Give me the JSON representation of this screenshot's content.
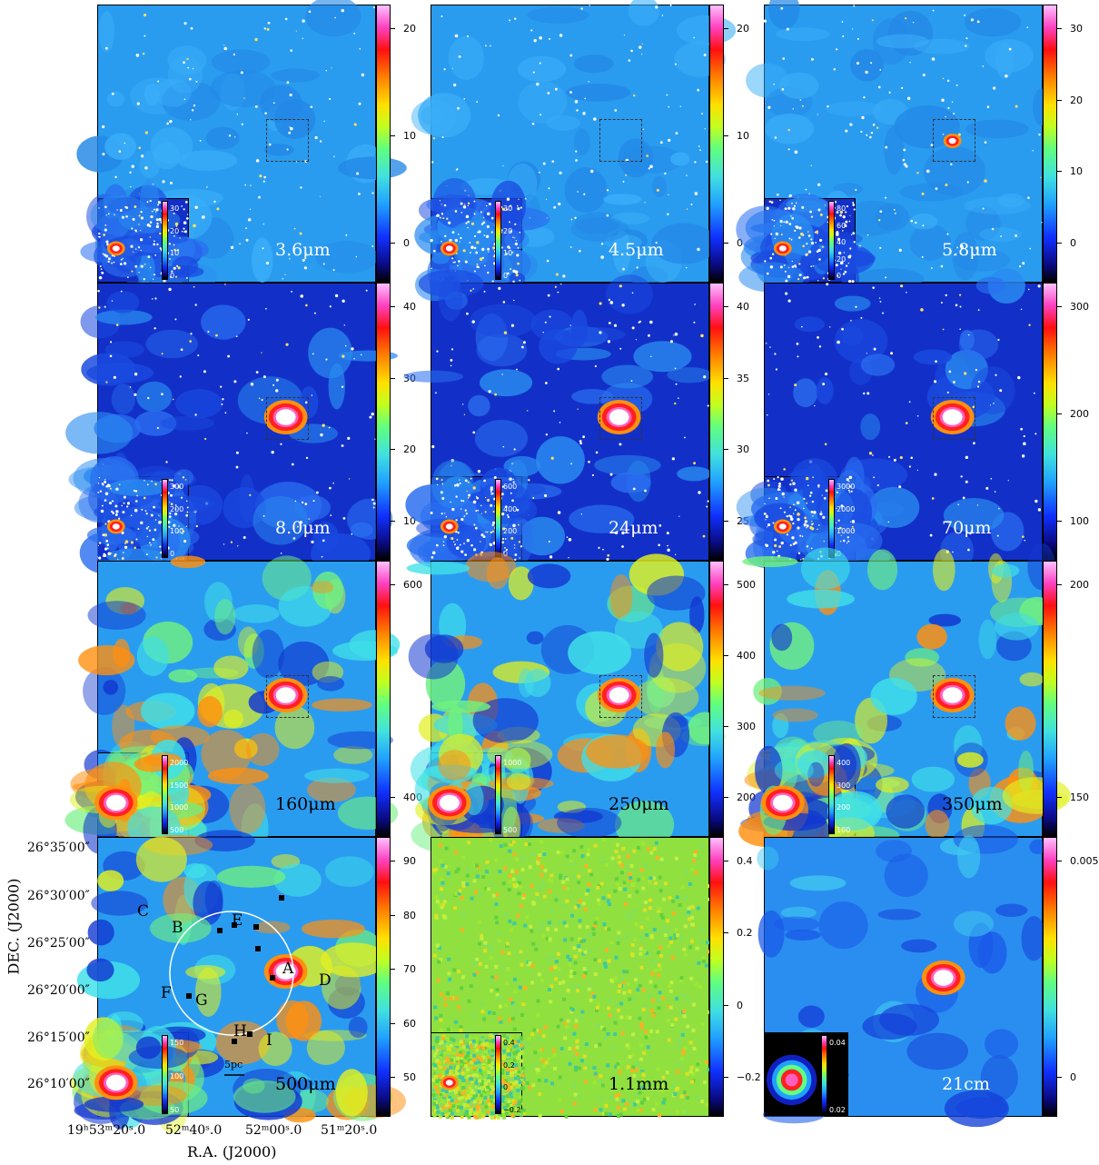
{
  "panels": [
    {
      "id": "p36",
      "label": "3.6μm",
      "ticks": [
        "20",
        "10",
        "0"
      ],
      "inset_ticks": [
        "30",
        "20",
        "10",
        "0"
      ],
      "style": "irac"
    },
    {
      "id": "p45",
      "label": "4.5μm",
      "ticks": [
        "20",
        "10",
        "0"
      ],
      "inset_ticks": [
        "30",
        "20",
        "10",
        "0"
      ],
      "style": "irac"
    },
    {
      "id": "p58",
      "label": "5.8μm",
      "ticks": [
        "30",
        "20",
        "10",
        "0"
      ],
      "inset_ticks": [
        "80",
        "60",
        "40",
        "20",
        "0"
      ],
      "style": "irac"
    },
    {
      "id": "p80",
      "label": "8.0μm",
      "ticks": [
        "40",
        "30",
        "20",
        "10"
      ],
      "inset_ticks": [
        "300",
        "200",
        "100",
        "0"
      ],
      "style": "mid"
    },
    {
      "id": "p24",
      "label": "24μm",
      "ticks": [
        "40",
        "35",
        "30",
        "25"
      ],
      "inset_ticks": [
        "600",
        "400",
        "200",
        "0"
      ],
      "style": "mid"
    },
    {
      "id": "p70",
      "label": "70μm",
      "ticks": [
        "300",
        "200",
        "100"
      ],
      "inset_ticks": [
        "3000",
        "2000",
        "1000",
        "0"
      ],
      "style": "mid"
    },
    {
      "id": "p160",
      "label": "160μm",
      "ticks": [
        "600",
        "400"
      ],
      "inset_ticks": [
        "2000",
        "1500",
        "1000",
        "500"
      ],
      "style": "far"
    },
    {
      "id": "p250",
      "label": "250μm",
      "ticks": [
        "500",
        "400",
        "300",
        "200"
      ],
      "inset_ticks": [
        "1000",
        "500"
      ],
      "style": "far"
    },
    {
      "id": "p350",
      "label": "350μm",
      "ticks": [
        "200",
        "150"
      ],
      "inset_ticks": [
        "400",
        "300",
        "200",
        "100"
      ],
      "style": "far"
    },
    {
      "id": "p500",
      "label": "500μm",
      "ticks": [
        "90",
        "80",
        "70",
        "60",
        "50"
      ],
      "inset_ticks": [
        "150",
        "100",
        "50"
      ],
      "style": "far"
    },
    {
      "id": "p11",
      "label": "1.1mm",
      "ticks": [
        "0.4",
        "0.2",
        "0",
        "−0.2"
      ],
      "inset_ticks": [
        "0.4",
        "0.2",
        "0",
        "−0.2"
      ],
      "style": "noise"
    },
    {
      "id": "p21",
      "label": "21cm",
      "ticks": [
        "0.005",
        "0"
      ],
      "inset_ticks": [
        "0.04",
        "0.02"
      ],
      "style": "radio"
    }
  ],
  "sources": {
    "A": "A",
    "B": "B",
    "C": "C",
    "D": "D",
    "E": "E",
    "F": "F",
    "G": "G",
    "H": "H",
    "I": "I"
  },
  "scale_bar": "5pc",
  "axes": {
    "ylabel": "DEC. (J2000)",
    "xlabel": "R.A. (J2000)",
    "dec_ticks": [
      "26°35′00″",
      "26°30′00″",
      "26°25′00″",
      "26°20′00″",
      "26°15′00″",
      "26°10′00″"
    ],
    "ra_ticks": [
      "19ʰ53ᵐ20ˢ.0",
      "52ᵐ40ˢ.0",
      "52ᵐ00ˢ.0",
      "51ᵐ20ˢ.0"
    ]
  }
}
